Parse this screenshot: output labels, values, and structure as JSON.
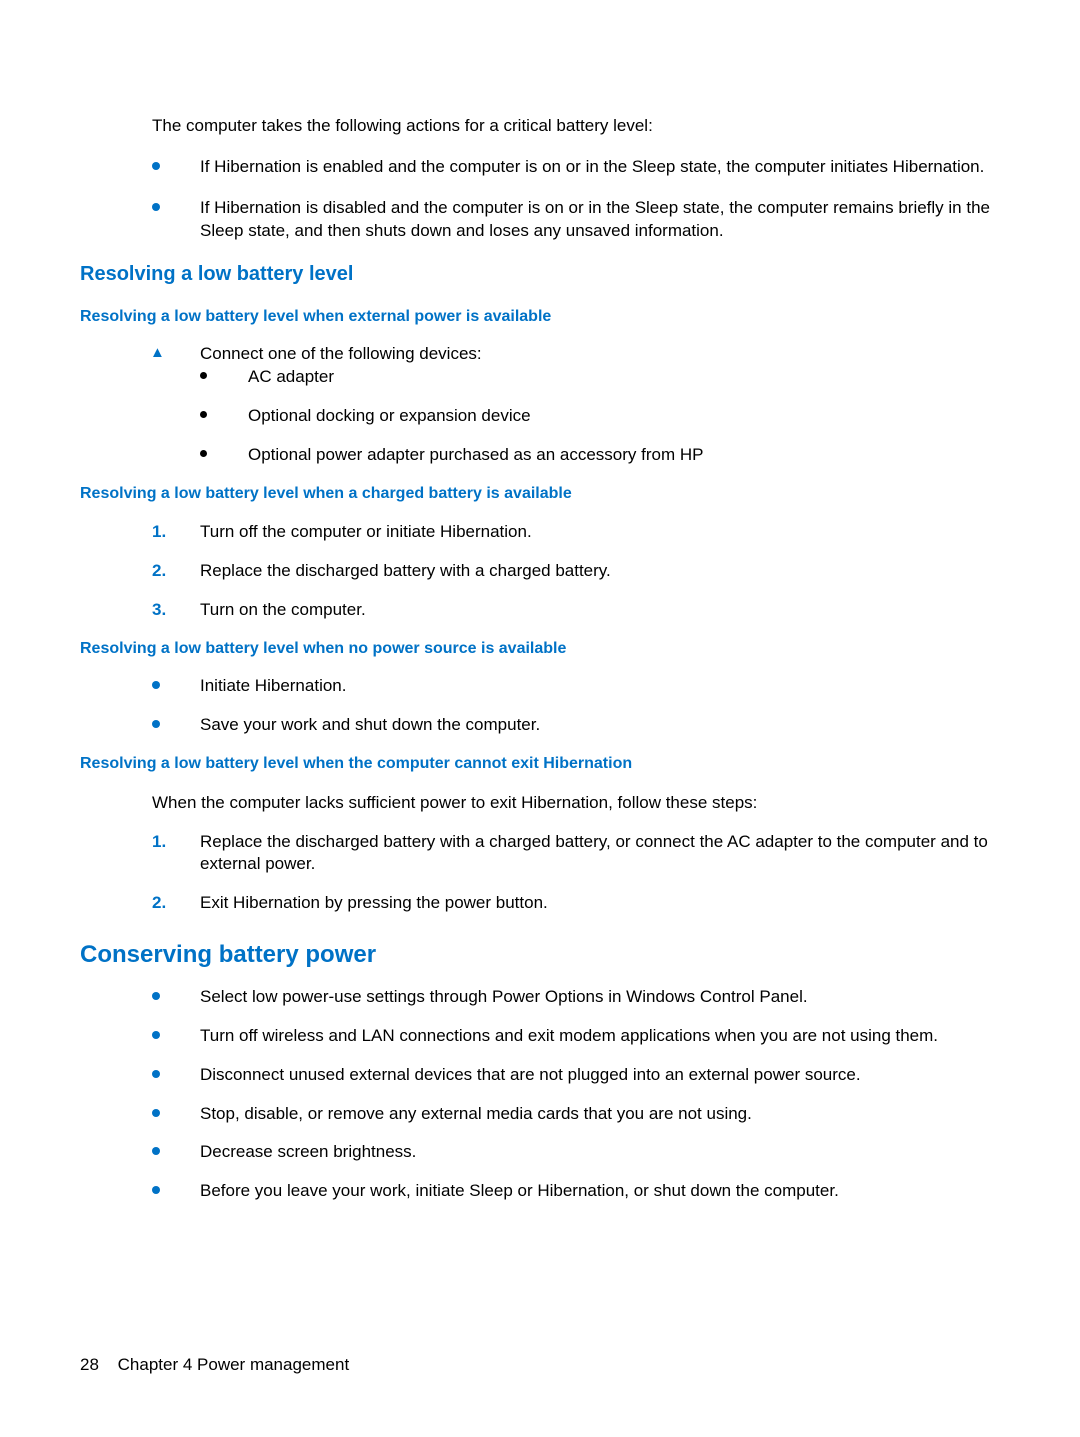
{
  "colors": {
    "accent": "#0072c6",
    "text": "#000000",
    "background": "#ffffff"
  },
  "typography": {
    "body_fontsize": 17,
    "h2_fontsize": 24,
    "h3_fontsize": 20,
    "h4_fontsize": 16,
    "font_family": "Arial"
  },
  "intro": {
    "text": "The computer takes the following actions for a critical battery level:",
    "bullets": [
      "If Hibernation is enabled and the computer is on or in the Sleep state, the computer initiates Hibernation.",
      "If Hibernation is disabled and the computer is on or in the Sleep state, the computer remains briefly in the Sleep state, and then shuts down and loses any unsaved information."
    ]
  },
  "section_resolving": {
    "title": "Resolving a low battery level",
    "sub1": {
      "title": "Resolving a low battery level when external power is available",
      "lead": "Connect one of the following devices:",
      "items": [
        "AC adapter",
        "Optional docking or expansion device",
        "Optional power adapter purchased as an accessory from HP"
      ]
    },
    "sub2": {
      "title": "Resolving a low battery level when a charged battery is available",
      "steps": [
        "Turn off the computer or initiate Hibernation.",
        "Replace the discharged battery with a charged battery.",
        "Turn on the computer."
      ]
    },
    "sub3": {
      "title": "Resolving a low battery level when no power source is available",
      "bullets": [
        "Initiate Hibernation.",
        "Save your work and shut down the computer."
      ]
    },
    "sub4": {
      "title": "Resolving a low battery level when the computer cannot exit Hibernation",
      "lead": "When the computer lacks sufficient power to exit Hibernation, follow these steps:",
      "steps": [
        "Replace the discharged battery with a charged battery, or connect the AC adapter to the computer and to external power.",
        "Exit Hibernation by pressing the power button."
      ]
    }
  },
  "section_conserving": {
    "title": "Conserving battery power",
    "bullets": [
      "Select low power-use settings through Power Options in Windows Control Panel.",
      "Turn off wireless and LAN connections and exit modem applications when you are not using them.",
      "Disconnect unused external devices that are not plugged into an external power source.",
      "Stop, disable, or remove any external media cards that you are not using.",
      "Decrease screen brightness.",
      "Before you leave your work, initiate Sleep or Hibernation, or shut down the computer."
    ]
  },
  "footer": {
    "page_number": "28",
    "chapter": "Chapter 4   Power management"
  }
}
